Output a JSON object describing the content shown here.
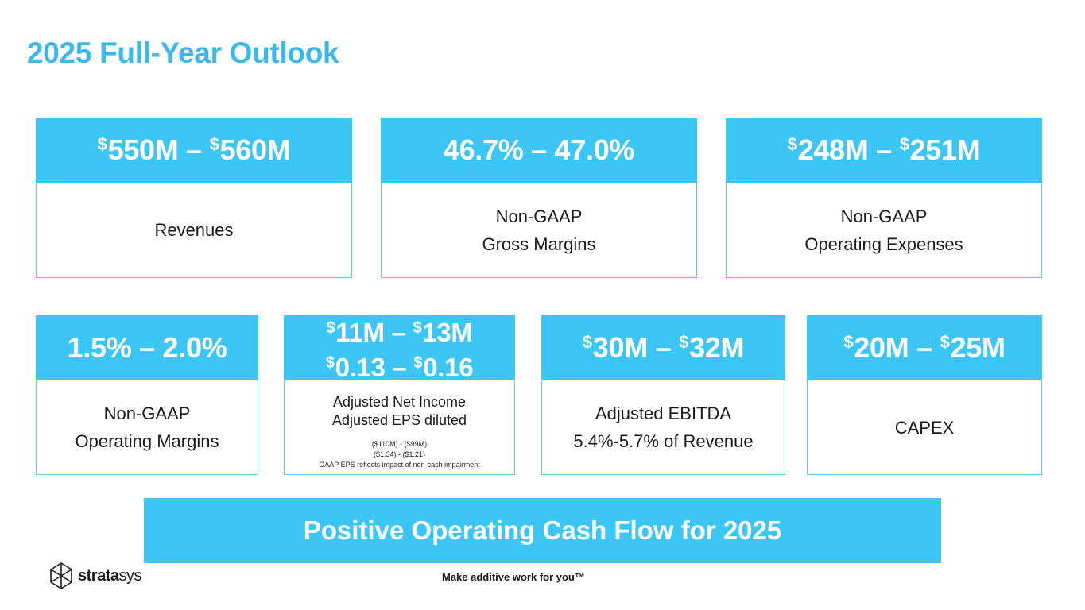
{
  "title": "2025 Full-Year Outlook",
  "cards": [
    {
      "head_parts": [
        "$",
        "550M – ",
        "$",
        "560M"
      ],
      "body": [
        "Revenues"
      ]
    },
    {
      "head_text": "46.7% – 47.0%",
      "body": [
        "Non-GAAP",
        "Gross Margins"
      ]
    },
    {
      "head_parts": [
        "$",
        "248M – ",
        "$",
        "251M"
      ],
      "body": [
        "Non-GAAP",
        "Operating Expenses"
      ]
    },
    {
      "head_text": "1.5% – 2.0%",
      "body": [
        "Non-GAAP",
        "Operating Margins"
      ]
    },
    {
      "head_line1": [
        "$",
        "11M – ",
        "$",
        "13M"
      ],
      "head_line2": [
        "$",
        "0.13 – ",
        "$",
        "0.16"
      ],
      "body": [
        "Adjusted Net Income",
        "Adjusted EPS diluted"
      ],
      "notes": [
        "($110M) - ($99M)",
        "($1.34) - ($1.21)",
        "GAAP EPS reflects impact of non-cash impairment"
      ]
    },
    {
      "head_parts": [
        "$",
        "30M – ",
        "$",
        "32M"
      ],
      "body": [
        "Adjusted EBITDA",
        "5.4%-5.7% of Revenue"
      ]
    },
    {
      "head_parts": [
        "$",
        "20M – ",
        "$",
        "25M"
      ],
      "body": [
        "CAPEX"
      ]
    }
  ],
  "banner": "Positive Operating Cash Flow for 2025",
  "logo": {
    "bold": "strata",
    "light": "sys",
    "icon": "stratasys-logo-icon"
  },
  "tagline": "Make additive work for you™",
  "colors": {
    "accent": "#3cc6f5",
    "title": "#3bb8ec",
    "border": "#5cc8ee"
  }
}
